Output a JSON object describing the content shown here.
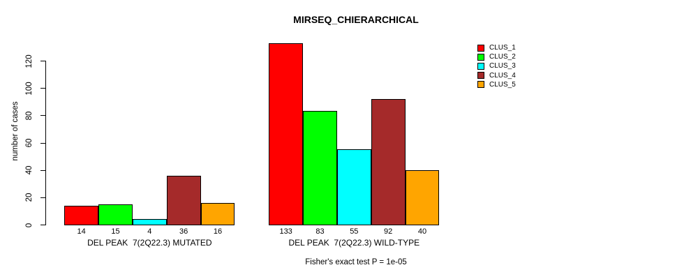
{
  "title": "MIRSEQ_CHIERARCHICAL",
  "chart_data": {
    "type": "bar",
    "title": "MIRSEQ_CHIERARCHICAL",
    "xlabel": "",
    "ylabel": "number of cases",
    "ylim": [
      0,
      137
    ],
    "yticks": [
      0,
      20,
      40,
      60,
      80,
      100,
      120
    ],
    "ytick_labels": [
      "0",
      "20",
      "40",
      "60",
      "80",
      "100",
      "120"
    ],
    "grid": false,
    "legend_position": "right",
    "series_labels": [
      "CLUS_1",
      "CLUS_2",
      "CLUS_3",
      "CLUS_4",
      "CLUS_5"
    ],
    "colors": [
      "#FF0000",
      "#00FF00",
      "#00FFFF",
      "#A52A2A",
      "#FFA500"
    ],
    "groups": [
      {
        "label": "DEL PEAK  7(2Q22.3) MUTATED",
        "values": [
          14,
          15,
          4,
          36,
          16
        ],
        "value_labels": [
          "14",
          "15",
          "4",
          "36",
          "16"
        ]
      },
      {
        "label": "DEL PEAK  7(2Q22.3) WILD-TYPE",
        "values": [
          133,
          83,
          55,
          92,
          40
        ],
        "value_labels": [
          "133",
          "83",
          "55",
          "92",
          "40"
        ]
      }
    ],
    "annotation": "Fisher's exact test P = 1e-05"
  },
  "legend": {
    "entries": [
      {
        "label": "CLUS_1",
        "color": "#FF0000"
      },
      {
        "label": "CLUS_2",
        "color": "#00FF00"
      },
      {
        "label": "CLUS_3",
        "color": "#00FFFF"
      },
      {
        "label": "CLUS_4",
        "color": "#A52A2A"
      },
      {
        "label": "CLUS_5",
        "color": "#FFA500"
      }
    ]
  }
}
